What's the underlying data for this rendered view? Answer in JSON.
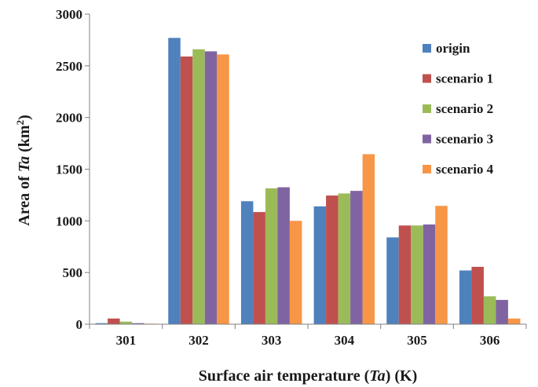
{
  "chart_data": {
    "type": "bar",
    "categories": [
      "301",
      "302",
      "303",
      "304",
      "305",
      "306"
    ],
    "series": [
      {
        "name": "origin",
        "color": "#4F81BD",
        "values": [
          10,
          2770,
          1190,
          1140,
          840,
          520
        ]
      },
      {
        "name": "scenario 1",
        "color": "#C0504D",
        "values": [
          55,
          2590,
          1085,
          1245,
          955,
          555
        ]
      },
      {
        "name": "scenario 2",
        "color": "#9BBB59",
        "values": [
          25,
          2660,
          1315,
          1265,
          955,
          270
        ]
      },
      {
        "name": "scenario 3",
        "color": "#8064A2",
        "values": [
          10,
          2640,
          1325,
          1290,
          965,
          235
        ]
      },
      {
        "name": "scenario 4",
        "color": "#F79646",
        "values": [
          5,
          2610,
          1000,
          1645,
          1145,
          55
        ]
      }
    ],
    "xlabel": {
      "pre": "Surface air temperature (",
      "ital": "Ta",
      "post": ") (K)"
    },
    "ylabel": {
      "pre": "Area of ",
      "ital": "Ta",
      "post": " (km",
      "sup": "2",
      "end": ")"
    },
    "ylim": [
      0,
      3000
    ],
    "yticks": [
      "0",
      "500",
      "1000",
      "1500",
      "2000",
      "2500",
      "3000"
    ],
    "grid": false,
    "legend_position": "top-right"
  }
}
